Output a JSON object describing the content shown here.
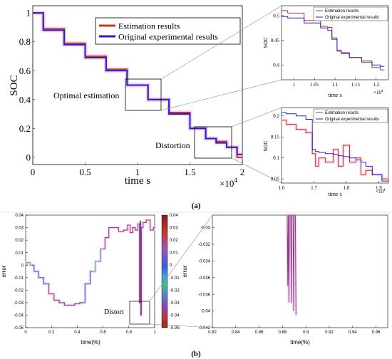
{
  "panel_a": {
    "label": "(a)",
    "main": {
      "xlabel": "time  s",
      "ylabel": "SOC",
      "xtick_labels": [
        "0",
        "0.5",
        "1",
        "1.5",
        "2"
      ],
      "ytick_labels": [
        "0",
        "0.2",
        "0.4",
        "0.6",
        "0.8",
        "1"
      ],
      "x_multiplier": "×10",
      "x_multiplier_exp": "4",
      "annot_optimal": "Optimal estimation",
      "annot_distortion": "Distortion",
      "legend": [
        "Estimation results",
        "Original experimental results"
      ]
    },
    "inset_top": {
      "xlabel": "time  s",
      "ylabel": "SOC",
      "xtick_labels": [
        "1",
        "1.05",
        "1.1",
        "1.15",
        "1.2"
      ],
      "ytick_labels": [
        "0.4",
        "0.45",
        "0.5"
      ],
      "x_multiplier": "×10",
      "x_multiplier_exp": "4",
      "legend": [
        "Estimation results",
        "Original experimental results"
      ]
    },
    "inset_bottom": {
      "xlabel": "time  s",
      "ylabel": "SOC",
      "xtick_labels": [
        "1.6",
        "1.7",
        "1.8",
        "1.9"
      ],
      "ytick_labels": [
        "0.05",
        "0.1",
        "0.15",
        "0.2"
      ],
      "x_multiplier": "×10",
      "x_multiplier_exp": "4",
      "legend": [
        "Estimation results",
        "Original experimental results"
      ]
    }
  },
  "panel_b": {
    "label": "(b)",
    "left": {
      "xlabel": "time(%)",
      "ylabel": "error",
      "xtick_labels": [
        "0",
        "0.2",
        "0.4",
        "0.6",
        "0.8",
        "1"
      ],
      "ytick_labels": [
        "-0.05",
        "-0.04",
        "-0.03",
        "-0.02",
        "-0.01",
        "0",
        "0.01",
        "0.02",
        "0.03",
        "0.04"
      ],
      "annot_distort": "Distort",
      "colorbar_labels": [
        "0.04",
        "0.03",
        "0.02",
        "0.01",
        "0",
        "-0.01",
        "-0.02",
        "-0.03",
        "-0.04",
        "-0.05"
      ]
    },
    "right": {
      "xlabel": "time(%)",
      "ylabel": "error",
      "xtick_labels": [
        "0.82",
        "0.84",
        "0.86",
        "0.88",
        "0.9",
        "0.92",
        "0.94",
        "0.96"
      ],
      "ytick_labels": [
        "-0.03",
        "-0.032",
        "-0.034",
        "-0.036",
        "-0.038",
        "-0.04",
        "-0.042"
      ]
    }
  },
  "colors": {
    "estimation": "#c0392b",
    "original": "#2222cc",
    "error_line": "#8e3a8e",
    "glow": "#f7c6e0"
  },
  "chart_data": [
    {
      "type": "line",
      "title": "",
      "xlabel": "time  s",
      "ylabel": "SOC",
      "xlim": [
        0,
        20000
      ],
      "ylim": [
        -0.05,
        1.05
      ],
      "series": [
        {
          "name": "Estimation results",
          "x": [
            0,
            2000,
            4000,
            6000,
            8000,
            10000,
            12000,
            14000,
            16000,
            17000,
            18000,
            19000,
            20000
          ],
          "y": [
            1.0,
            0.89,
            0.79,
            0.7,
            0.61,
            0.5,
            0.4,
            0.31,
            0.2,
            0.13,
            0.11,
            0.07,
            0.0
          ]
        },
        {
          "name": "Original experimental results",
          "x": [
            0,
            2000,
            4000,
            6000,
            8000,
            10000,
            12000,
            14000,
            16000,
            17000,
            18000,
            19000,
            20000
          ],
          "y": [
            1.0,
            0.88,
            0.78,
            0.69,
            0.6,
            0.5,
            0.4,
            0.3,
            0.2,
            0.13,
            0.1,
            0.07,
            0.02
          ]
        }
      ]
    },
    {
      "type": "line",
      "title": "",
      "xlabel": "time  s",
      "ylabel": "SOC",
      "xlim": [
        9700,
        12300
      ],
      "ylim": [
        0.37,
        0.52
      ],
      "series": [
        {
          "name": "Estimation results",
          "x": [
            9700,
            10000,
            10500,
            10800,
            10850,
            11000,
            11100,
            11200,
            11500,
            11800,
            12000,
            12200
          ],
          "y": [
            0.51,
            0.505,
            0.49,
            0.478,
            0.476,
            0.455,
            0.43,
            0.425,
            0.415,
            0.405,
            0.395,
            0.39
          ]
        },
        {
          "name": "Original experimental results",
          "x": [
            9700,
            10000,
            10500,
            10800,
            10850,
            11000,
            11100,
            11200,
            11500,
            11800,
            12000,
            12200
          ],
          "y": [
            0.498,
            0.495,
            0.485,
            0.475,
            0.47,
            0.452,
            0.428,
            0.423,
            0.415,
            0.408,
            0.4,
            0.397
          ]
        }
      ]
    },
    {
      "type": "line",
      "title": "",
      "xlabel": "time  s",
      "ylabel": "SOC",
      "xlim": [
        16000,
        19300
      ],
      "ylim": [
        0.04,
        0.22
      ],
      "series": [
        {
          "name": "Estimation results",
          "x": [
            16000,
            16300,
            16600,
            16900,
            17000,
            17100,
            17200,
            17500,
            17700,
            17800,
            18000,
            18200,
            18400,
            18500,
            18700,
            18900,
            19300
          ],
          "y": [
            0.19,
            0.18,
            0.168,
            0.16,
            0.11,
            0.08,
            0.1,
            0.09,
            0.12,
            0.08,
            0.13,
            0.09,
            0.1,
            0.06,
            0.07,
            0.06,
            0.05
          ]
        },
        {
          "name": "Original experimental results",
          "x": [
            16000,
            16300,
            16600,
            16900,
            17000,
            17100,
            17200,
            17500,
            17700,
            17800,
            18000,
            18200,
            18400,
            18500,
            18700,
            18900,
            19300
          ],
          "y": [
            0.208,
            0.205,
            0.2,
            0.192,
            0.12,
            0.115,
            0.113,
            0.11,
            0.108,
            0.105,
            0.103,
            0.1,
            0.095,
            0.09,
            0.08,
            0.06,
            0.045
          ]
        }
      ]
    },
    {
      "type": "line",
      "title": "",
      "xlabel": "time(%)",
      "ylabel": "error",
      "xlim": [
        0,
        1
      ],
      "ylim": [
        -0.05,
        0.04
      ],
      "series": [
        {
          "name": "",
          "x": [
            0,
            0.02,
            0.05,
            0.08,
            0.12,
            0.16,
            0.2,
            0.24,
            0.28,
            0.32,
            0.36,
            0.4,
            0.44,
            0.48,
            0.52,
            0.56,
            0.6,
            0.63,
            0.66,
            0.7,
            0.74,
            0.78,
            0.8,
            0.82,
            0.84,
            0.86,
            0.88,
            0.885,
            0.89,
            0.895,
            0.9,
            0.92,
            0.95,
            0.98,
            1.0
          ],
          "y": [
            0.0,
            0.002,
            0.0,
            -0.005,
            -0.01,
            -0.015,
            -0.023,
            -0.028,
            -0.03,
            -0.032,
            -0.032,
            -0.031,
            -0.03,
            -0.015,
            -0.005,
            0.003,
            0.013,
            0.022,
            0.03,
            0.03,
            0.027,
            0.028,
            0.032,
            0.026,
            0.03,
            0.028,
            0.033,
            -0.03,
            0.035,
            -0.04,
            0.03,
            0.034,
            0.036,
            0.028,
            0.03
          ]
        }
      ]
    },
    {
      "type": "line",
      "title": "",
      "xlabel": "time(%)",
      "ylabel": "error",
      "xlim": [
        0.82,
        0.97
      ],
      "ylim": [
        -0.042,
        -0.0285
      ],
      "series": [
        {
          "name": "",
          "x": [
            0.884,
            0.8845,
            0.885,
            0.8855,
            0.886,
            0.887,
            0.8875,
            0.888,
            0.889,
            0.8895,
            0.89,
            0.891,
            0.8915
          ],
          "y": [
            -0.0285,
            -0.037,
            -0.0285,
            -0.039,
            -0.0285,
            -0.0285,
            -0.039,
            -0.0285,
            -0.0285,
            -0.04,
            -0.0285,
            -0.0285,
            -0.0405
          ]
        }
      ]
    }
  ]
}
